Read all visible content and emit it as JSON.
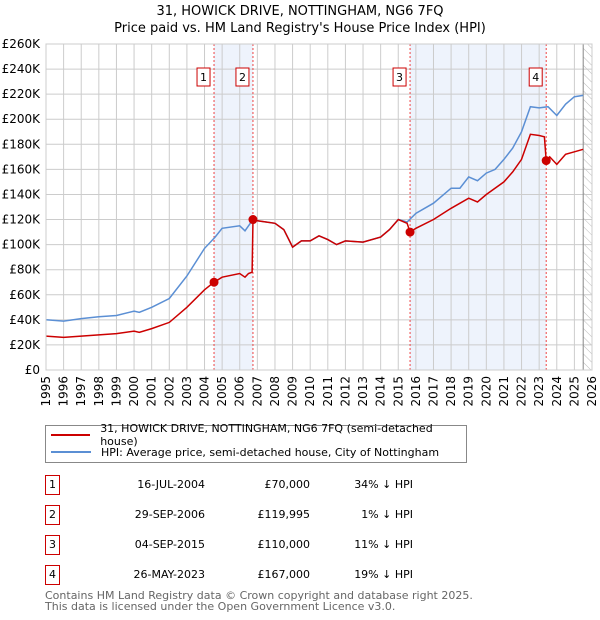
{
  "chart_data": {
    "type": "line",
    "title": "31, HOWICK DRIVE, NOTTINGHAM, NG6 7FQ",
    "subtitle": "Price paid vs. HM Land Registry's House Price Index (HPI)",
    "xlim": [
      1995,
      2026
    ],
    "ylim": [
      0,
      260000
    ],
    "x_ticks": [
      1995,
      1996,
      1997,
      1998,
      1999,
      2000,
      2001,
      2002,
      2003,
      2004,
      2005,
      2006,
      2007,
      2008,
      2009,
      2010,
      2011,
      2012,
      2013,
      2014,
      2015,
      2016,
      2017,
      2018,
      2019,
      2020,
      2021,
      2022,
      2023,
      2024,
      2025,
      2026
    ],
    "y_ticks": [
      {
        "v": 0,
        "l": "£0"
      },
      {
        "v": 20000,
        "l": "£20K"
      },
      {
        "v": 40000,
        "l": "£40K"
      },
      {
        "v": 60000,
        "l": "£60K"
      },
      {
        "v": 80000,
        "l": "£80K"
      },
      {
        "v": 100000,
        "l": "£100K"
      },
      {
        "v": 120000,
        "l": "£120K"
      },
      {
        "v": 140000,
        "l": "£140K"
      },
      {
        "v": 160000,
        "l": "£160K"
      },
      {
        "v": 180000,
        "l": "£180K"
      },
      {
        "v": 200000,
        "l": "£200K"
      },
      {
        "v": 220000,
        "l": "£220K"
      },
      {
        "v": 240000,
        "l": "£240K"
      },
      {
        "v": 260000,
        "l": "£260K"
      }
    ],
    "grid": true,
    "shaded_ranges": [
      [
        2004.54,
        2006.75
      ],
      [
        2015.67,
        2023.4
      ]
    ],
    "hatched_from": 2025.5,
    "series": [
      {
        "name": "31, HOWICK DRIVE, NOTTINGHAM, NG6 7FQ (semi-detached house)",
        "color": "#cc0000",
        "x": [
          1995,
          1996,
          1997,
          1998,
          1999,
          2000,
          2000.3,
          2001,
          2002,
          2003,
          2004,
          2004.54,
          2005,
          2006,
          2006.3,
          2006.5,
          2006.7,
          2006.75,
          2007,
          2008,
          2008.5,
          2009,
          2009.5,
          2010,
          2010.5,
          2011,
          2011.5,
          2012,
          2013,
          2014,
          2014.5,
          2015,
          2015.5,
          2015.67,
          2016,
          2017,
          2018,
          2019,
          2019.5,
          2020,
          2021,
          2021.5,
          2022,
          2022.5,
          2023,
          2023.3,
          2023.4,
          2023.6,
          2024,
          2024.5,
          2025,
          2025.5
        ],
        "y": [
          27000,
          26000,
          27000,
          28000,
          29000,
          31000,
          30000,
          33000,
          38000,
          50000,
          64000,
          70000,
          74000,
          77000,
          74000,
          77000,
          78000,
          120000,
          119000,
          117000,
          112000,
          98000,
          103000,
          103000,
          107000,
          104000,
          100000,
          103000,
          102000,
          106000,
          112000,
          120000,
          117000,
          110000,
          113000,
          120000,
          129000,
          137000,
          134000,
          140000,
          150000,
          158000,
          168000,
          188000,
          187000,
          186000,
          167000,
          170000,
          164000,
          172000,
          174000,
          176000
        ]
      },
      {
        "name": "HPI: Average price, semi-detached house, City of Nottingham",
        "color": "#5b8fd4",
        "x": [
          1995,
          1996,
          1997,
          1998,
          1999,
          2000,
          2000.3,
          2001,
          2002,
          2003,
          2004,
          2004.6,
          2005,
          2006,
          2006.3,
          2006.75,
          2007,
          2008,
          2008.5,
          2009,
          2009.5,
          2010,
          2010.5,
          2011,
          2011.5,
          2012,
          2013,
          2014,
          2014.5,
          2015,
          2015.5,
          2016,
          2017,
          2018,
          2018.5,
          2019,
          2019.5,
          2020,
          2020.5,
          2021,
          2021.5,
          2022,
          2022.5,
          2023,
          2023.5,
          2024,
          2024.5,
          2025,
          2025.5
        ],
        "y": [
          40000,
          39000,
          41000,
          42500,
          43500,
          47000,
          46000,
          50000,
          57000,
          75000,
          97000,
          106000,
          113000,
          115000,
          111000,
          120000,
          119000,
          117000,
          112000,
          98000,
          103000,
          103000,
          107000,
          104000,
          100000,
          103000,
          102000,
          106000,
          112000,
          120000,
          118000,
          125000,
          133000,
          145000,
          145000,
          154000,
          151000,
          157000,
          160000,
          168000,
          177000,
          190000,
          210000,
          209000,
          210000,
          203000,
          212000,
          218000,
          219000
        ]
      }
    ],
    "sales": [
      {
        "n": "1",
        "x": 2004.54,
        "y": 70000
      },
      {
        "n": "2",
        "x": 2006.75,
        "y": 119995
      },
      {
        "n": "3",
        "x": 2015.67,
        "y": 110000
      },
      {
        "n": "4",
        "x": 2023.4,
        "y": 167000
      }
    ]
  },
  "legend": {
    "property": "31, HOWICK DRIVE, NOTTINGHAM, NG6 7FQ (semi-detached house)",
    "hpi": "HPI: Average price, semi-detached house, City of Nottingham"
  },
  "transactions": [
    {
      "n": "1",
      "date": "16-JUL-2004",
      "price": "£70,000",
      "hpi": "34% ↓ HPI"
    },
    {
      "n": "2",
      "date": "29-SEP-2006",
      "price": "£119,995",
      "hpi": "1% ↓ HPI"
    },
    {
      "n": "3",
      "date": "04-SEP-2015",
      "price": "£110,000",
      "hpi": "11% ↓ HPI"
    },
    {
      "n": "4",
      "date": "26-MAY-2023",
      "price": "£167,000",
      "hpi": "19% ↓ HPI"
    }
  ],
  "footer": {
    "line1": "Contains HM Land Registry data © Crown copyright and database right 2025.",
    "line2": "This data is licensed under the Open Government Licence v3.0."
  }
}
